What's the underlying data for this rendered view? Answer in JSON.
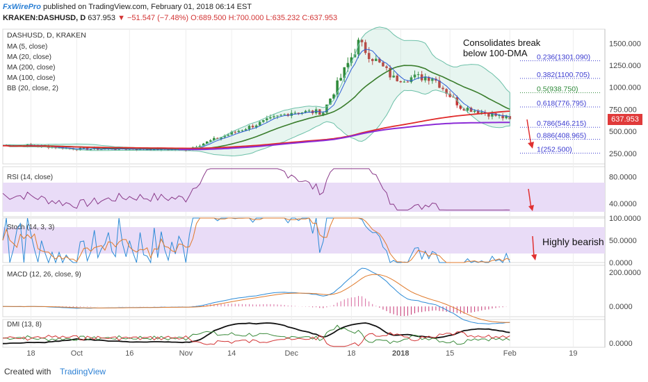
{
  "header": {
    "brand": "FxWirePro",
    "publish_text": "published on TradingView.com, February 01, 2018 06:14 EST",
    "symbol": "KRAKEN:DASHUSD, D",
    "last": "637.953",
    "change": "▼ −51.547 (−7.48%)",
    "open": "O:689.500",
    "high": "H:700.000",
    "low": "L:635.232",
    "close": "C:637.953"
  },
  "footer": {
    "created_with": "Created with",
    "tradingview": "TradingView"
  },
  "colors": {
    "ma5": "#2b5bd6",
    "ma20": "#3a7d2c",
    "ma200": "#8b2bd6",
    "ma100": "#e02828",
    "bb": "#6cc0a8",
    "candle_up": "#2f8a3a",
    "candle_down": "#c43232",
    "rsi_band": "#e9dcf7",
    "price_tag": "#e03a3a",
    "annotation_arrow": "#e03030"
  },
  "chart_data": {
    "type": "candlestick",
    "title": "DASHUSD, D, KRAKEN",
    "indicators_legend": [
      "MA (5, close)",
      "MA (20, close)",
      "MA (200, close)",
      "MA (100, close)",
      "BB (20, close, 2)"
    ],
    "x_tick_labels": [
      "18",
      "Oct",
      "16",
      "Nov",
      "14",
      "Dec",
      "18",
      "2018",
      "15",
      "Feb",
      "19"
    ],
    "price_axis_labels": [
      "1500.000",
      "1250.000",
      "1000.000",
      "750.000",
      "500.000",
      "250.000"
    ],
    "ylim": [
      130,
      1660
    ],
    "price_series_key_closes": [
      {
        "date": "2017-09-18",
        "close": 340
      },
      {
        "date": "2017-10-01",
        "close": 300
      },
      {
        "date": "2017-10-16",
        "close": 300
      },
      {
        "date": "2017-11-01",
        "close": 290
      },
      {
        "date": "2017-11-14",
        "close": 480
      },
      {
        "date": "2017-12-01",
        "close": 720
      },
      {
        "date": "2017-12-10",
        "close": 720
      },
      {
        "date": "2017-12-20",
        "close": 1500
      },
      {
        "date": "2017-12-30",
        "close": 1100
      },
      {
        "date": "2018-01-10",
        "close": 1120
      },
      {
        "date": "2018-01-18",
        "close": 780
      },
      {
        "date": "2018-02-01",
        "close": 637.953
      }
    ],
    "last_price": "637.953",
    "fibonacci_levels": [
      {
        "label": "0.236(1301.090)",
        "value": 1301.09
      },
      {
        "label": "0.382(1100.705)",
        "value": 1100.705
      },
      {
        "label": "0.5(938.750)",
        "value": 938.75
      },
      {
        "label": "0.618(776.795)",
        "value": 776.795
      },
      {
        "label": "0.786(546.215)",
        "value": 546.215
      },
      {
        "label": "0.886(408.965)",
        "value": 408.965
      },
      {
        "label": "1(252.500)",
        "value": 252.5
      }
    ],
    "annotations": [
      {
        "text": "Consolidates break below 100-DMA"
      },
      {
        "text": "Highly bearish"
      }
    ],
    "panels": [
      {
        "name": "RSI (14, close)",
        "axis_labels": [
          "80.0000",
          "40.0000"
        ]
      },
      {
        "name": "Stoch (14, 3, 3)",
        "axis_labels": [
          "100.0000",
          "50.0000",
          "0.0000"
        ]
      },
      {
        "name": "MACD (12, 26, close, 9)",
        "axis_labels": [
          "200.0000",
          "0.0000"
        ]
      },
      {
        "name": "DMI (13, 8)",
        "axis_labels": [
          "0.0000"
        ]
      }
    ]
  }
}
